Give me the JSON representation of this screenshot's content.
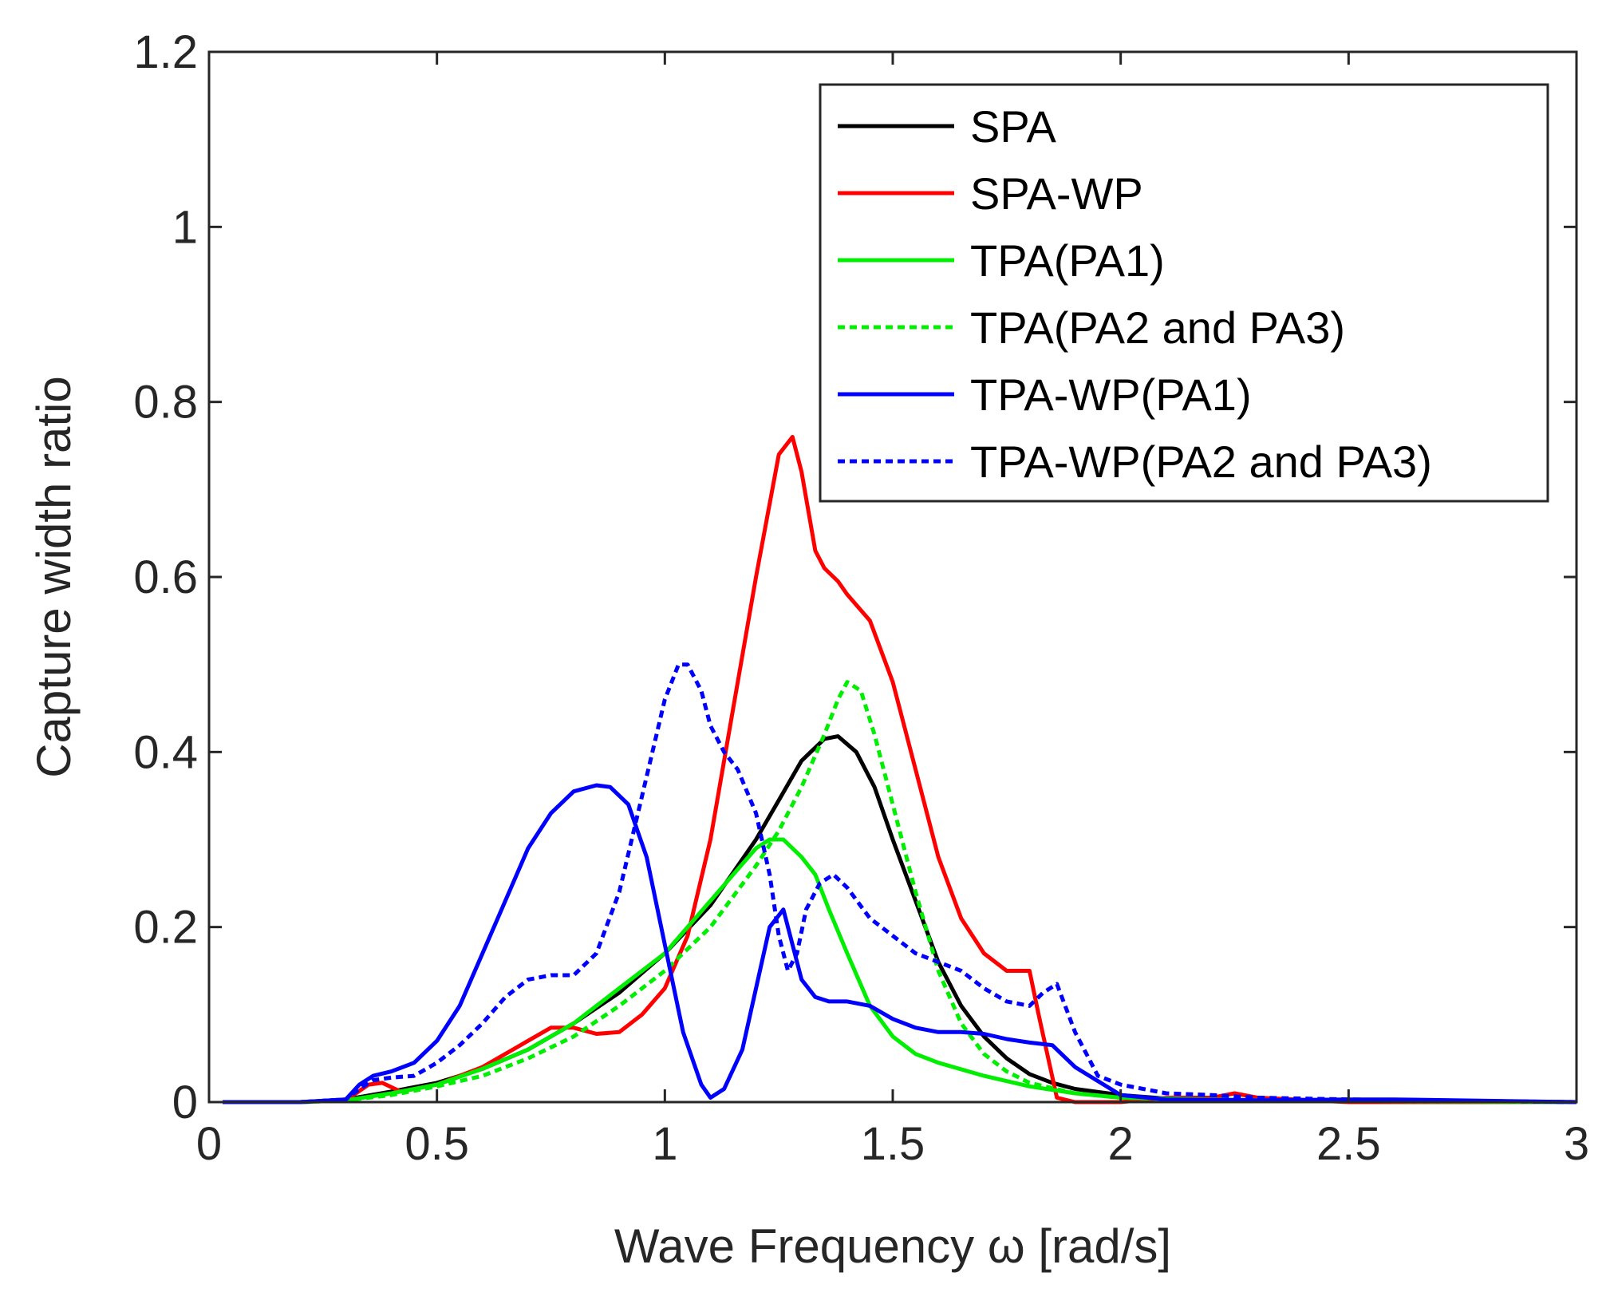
{
  "chart_data": {
    "type": "line",
    "title": "",
    "xlabel": "Wave Frequency ω [rad/s]",
    "ylabel": "Capture width ratio",
    "xlim": [
      0,
      3
    ],
    "ylim": [
      0,
      1.2
    ],
    "xticks": [
      0,
      0.5,
      1,
      1.5,
      2,
      2.5,
      3
    ],
    "xtick_labels": [
      "0",
      "0.5",
      "1",
      "1.5",
      "2",
      "2.5",
      "3"
    ],
    "yticks": [
      0,
      0.2,
      0.4,
      0.6,
      0.8,
      1.0,
      1.2
    ],
    "ytick_labels": [
      "0",
      "0.2",
      "0.4",
      "0.6",
      "0.8",
      "1",
      "1.2"
    ],
    "grid": false,
    "legend_position": "top-right",
    "series": [
      {
        "name": "SPA",
        "color": "#000000",
        "dash": "solid",
        "x": [
          0.03,
          0.2,
          0.3,
          0.4,
          0.5,
          0.6,
          0.7,
          0.8,
          0.9,
          1.0,
          1.1,
          1.2,
          1.25,
          1.3,
          1.35,
          1.38,
          1.42,
          1.46,
          1.5,
          1.55,
          1.6,
          1.65,
          1.7,
          1.75,
          1.8,
          1.85,
          1.9,
          2.0,
          2.1,
          2.3,
          2.6,
          3.0
        ],
        "y": [
          0,
          0,
          0.003,
          0.012,
          0.022,
          0.038,
          0.06,
          0.09,
          0.125,
          0.17,
          0.225,
          0.3,
          0.345,
          0.39,
          0.415,
          0.418,
          0.4,
          0.36,
          0.3,
          0.23,
          0.16,
          0.11,
          0.075,
          0.05,
          0.032,
          0.022,
          0.015,
          0.008,
          0.004,
          0.002,
          0.001,
          0
        ]
      },
      {
        "name": "SPA-WP",
        "color": "#ff0000",
        "dash": "solid",
        "x": [
          0.03,
          0.2,
          0.3,
          0.35,
          0.38,
          0.42,
          0.5,
          0.6,
          0.7,
          0.75,
          0.8,
          0.85,
          0.9,
          0.95,
          1.0,
          1.05,
          1.1,
          1.15,
          1.2,
          1.25,
          1.28,
          1.3,
          1.33,
          1.35,
          1.38,
          1.4,
          1.45,
          1.5,
          1.55,
          1.6,
          1.65,
          1.7,
          1.75,
          1.8,
          1.82,
          1.86,
          1.9,
          2.0,
          2.1,
          2.2,
          2.25,
          2.3,
          2.5,
          3.0
        ],
        "y": [
          0,
          0,
          0.002,
          0.02,
          0.022,
          0.012,
          0.02,
          0.04,
          0.07,
          0.085,
          0.085,
          0.078,
          0.08,
          0.1,
          0.13,
          0.19,
          0.3,
          0.45,
          0.6,
          0.74,
          0.76,
          0.72,
          0.63,
          0.61,
          0.595,
          0.58,
          0.55,
          0.48,
          0.38,
          0.28,
          0.21,
          0.17,
          0.15,
          0.15,
          0.1,
          0.005,
          0,
          0,
          0.005,
          0.005,
          0.01,
          0.005,
          0,
          0
        ]
      },
      {
        "name": "TPA(PA1)",
        "color": "#00ee00",
        "dash": "solid",
        "x": [
          0.03,
          0.2,
          0.3,
          0.4,
          0.5,
          0.6,
          0.7,
          0.8,
          0.9,
          1.0,
          1.05,
          1.1,
          1.15,
          1.2,
          1.23,
          1.26,
          1.3,
          1.33,
          1.36,
          1.4,
          1.45,
          1.5,
          1.55,
          1.6,
          1.7,
          1.8,
          1.9,
          2.0,
          2.2,
          2.5,
          3.0
        ],
        "y": [
          0,
          0,
          0.002,
          0.01,
          0.02,
          0.038,
          0.06,
          0.09,
          0.13,
          0.17,
          0.2,
          0.23,
          0.26,
          0.29,
          0.3,
          0.3,
          0.28,
          0.26,
          0.22,
          0.17,
          0.11,
          0.075,
          0.055,
          0.045,
          0.03,
          0.018,
          0.01,
          0.005,
          0.003,
          0.001,
          0
        ]
      },
      {
        "name": "TPA(PA2 and PA3)",
        "color": "#00ee00",
        "dash": "dotted",
        "x": [
          0.03,
          0.2,
          0.3,
          0.4,
          0.5,
          0.6,
          0.7,
          0.8,
          0.9,
          1.0,
          1.1,
          1.2,
          1.25,
          1.3,
          1.35,
          1.38,
          1.4,
          1.43,
          1.46,
          1.5,
          1.55,
          1.6,
          1.65,
          1.7,
          1.75,
          1.8,
          1.9,
          2.0,
          2.2,
          2.5,
          3.0
        ],
        "y": [
          0,
          0,
          0.002,
          0.008,
          0.018,
          0.03,
          0.05,
          0.075,
          0.11,
          0.15,
          0.2,
          0.27,
          0.31,
          0.36,
          0.42,
          0.46,
          0.48,
          0.47,
          0.42,
          0.34,
          0.24,
          0.15,
          0.09,
          0.055,
          0.035,
          0.022,
          0.01,
          0.005,
          0.002,
          0.001,
          0
        ]
      },
      {
        "name": "TPA-WP(PA1)",
        "color": "#0000ff",
        "dash": "solid",
        "x": [
          0.03,
          0.2,
          0.3,
          0.33,
          0.36,
          0.4,
          0.45,
          0.5,
          0.55,
          0.6,
          0.65,
          0.7,
          0.75,
          0.8,
          0.85,
          0.88,
          0.92,
          0.96,
          1.0,
          1.04,
          1.08,
          1.1,
          1.13,
          1.17,
          1.2,
          1.23,
          1.26,
          1.28,
          1.3,
          1.33,
          1.36,
          1.4,
          1.45,
          1.5,
          1.55,
          1.6,
          1.65,
          1.7,
          1.75,
          1.8,
          1.85,
          1.9,
          2.0,
          2.1,
          2.3,
          2.5,
          2.6,
          3.0
        ],
        "y": [
          0,
          0,
          0.003,
          0.02,
          0.03,
          0.035,
          0.045,
          0.07,
          0.11,
          0.17,
          0.23,
          0.29,
          0.33,
          0.355,
          0.362,
          0.36,
          0.34,
          0.28,
          0.18,
          0.08,
          0.02,
          0.005,
          0.015,
          0.06,
          0.13,
          0.2,
          0.22,
          0.18,
          0.14,
          0.12,
          0.115,
          0.115,
          0.11,
          0.095,
          0.085,
          0.08,
          0.08,
          0.078,
          0.072,
          0.068,
          0.065,
          0.04,
          0.008,
          0.003,
          0.002,
          0.003,
          0.003,
          0
        ]
      },
      {
        "name": "TPA-WP(PA2 and PA3)",
        "color": "#0000ff",
        "dash": "dotted",
        "x": [
          0.03,
          0.2,
          0.3,
          0.33,
          0.36,
          0.4,
          0.45,
          0.5,
          0.55,
          0.6,
          0.65,
          0.7,
          0.75,
          0.8,
          0.85,
          0.9,
          0.95,
          1.0,
          1.03,
          1.05,
          1.08,
          1.1,
          1.13,
          1.16,
          1.2,
          1.23,
          1.25,
          1.27,
          1.29,
          1.31,
          1.34,
          1.37,
          1.4,
          1.45,
          1.5,
          1.55,
          1.6,
          1.65,
          1.7,
          1.75,
          1.8,
          1.83,
          1.86,
          1.9,
          1.95,
          2.0,
          2.1,
          2.2,
          2.3,
          2.5,
          3.0
        ],
        "y": [
          0,
          0,
          0.003,
          0.015,
          0.025,
          0.028,
          0.03,
          0.045,
          0.065,
          0.09,
          0.12,
          0.14,
          0.145,
          0.145,
          0.17,
          0.24,
          0.35,
          0.46,
          0.5,
          0.5,
          0.47,
          0.43,
          0.4,
          0.38,
          0.33,
          0.26,
          0.19,
          0.15,
          0.17,
          0.22,
          0.25,
          0.26,
          0.245,
          0.21,
          0.19,
          0.17,
          0.16,
          0.15,
          0.13,
          0.115,
          0.11,
          0.125,
          0.135,
          0.08,
          0.03,
          0.02,
          0.01,
          0.008,
          0.005,
          0.003,
          0
        ]
      }
    ]
  }
}
